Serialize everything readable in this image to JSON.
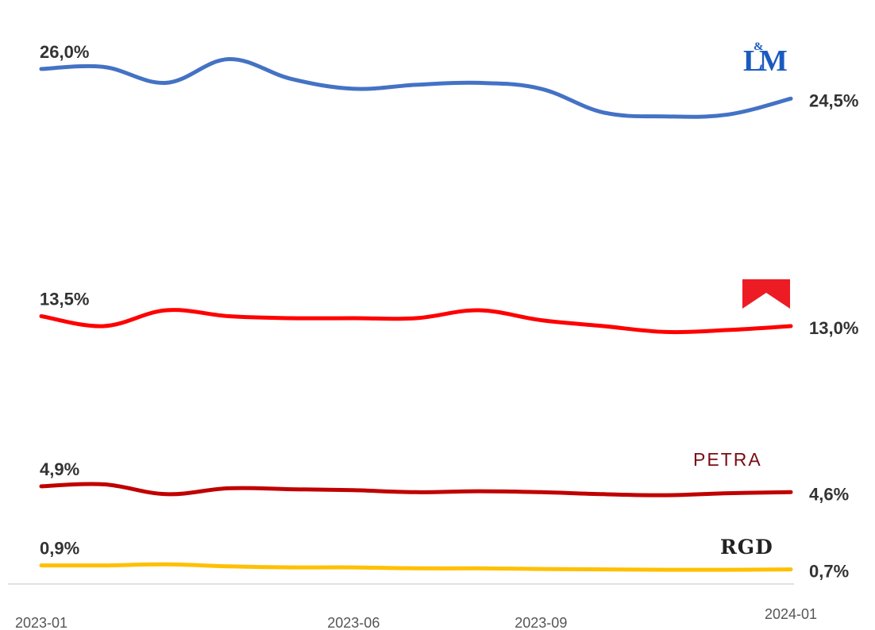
{
  "chart_data": {
    "type": "line",
    "x": [
      "2023-01",
      "2023-02",
      "2023-03",
      "2023-04",
      "2023-05",
      "2023-06",
      "2023-07",
      "2023-08",
      "2023-09",
      "2023-10",
      "2023-11",
      "2023-12",
      "2024-01"
    ],
    "x_tick_labels": [
      "2023-01",
      "2023-06",
      "2023-09",
      "2024-01"
    ],
    "ylim": [
      0,
      27
    ],
    "grid": false,
    "legend": "brand logos at right end of each line",
    "series": [
      {
        "name": "L&M",
        "color": "#4472c4",
        "values": [
          26.0,
          26.1,
          25.3,
          26.5,
          25.5,
          25.0,
          25.2,
          25.3,
          25.0,
          23.8,
          23.6,
          23.7,
          24.5
        ],
        "start_label": "26,0%",
        "end_label": "24,5%"
      },
      {
        "name": "",
        "color": "#ff0000",
        "logo_color": "#ed1c24",
        "values": [
          13.5,
          13.0,
          13.8,
          13.5,
          13.4,
          13.4,
          13.4,
          13.8,
          13.3,
          13.0,
          12.7,
          12.8,
          13.0
        ],
        "start_label": "13,5%",
        "end_label": "13,0%"
      },
      {
        "name": "PETRA",
        "color": "#c00000",
        "logo_color": "#7a0c14",
        "values": [
          4.9,
          5.0,
          4.5,
          4.8,
          4.75,
          4.7,
          4.6,
          4.65,
          4.6,
          4.5,
          4.45,
          4.55,
          4.6
        ],
        "start_label": "4,9%",
        "end_label": "4,6%"
      },
      {
        "name": "RGD",
        "color": "#ffc000",
        "logo_color": "#222222",
        "values": [
          0.9,
          0.9,
          0.95,
          0.85,
          0.8,
          0.8,
          0.75,
          0.75,
          0.72,
          0.7,
          0.68,
          0.68,
          0.7
        ],
        "start_label": "0,9%",
        "end_label": "0,7%"
      }
    ],
    "logos": {
      "lm": {
        "text": "L&M",
        "color": "#1a5bbf"
      },
      "petra": {
        "text": "PETRA"
      },
      "rgd": {
        "text": "RGD"
      }
    }
  }
}
